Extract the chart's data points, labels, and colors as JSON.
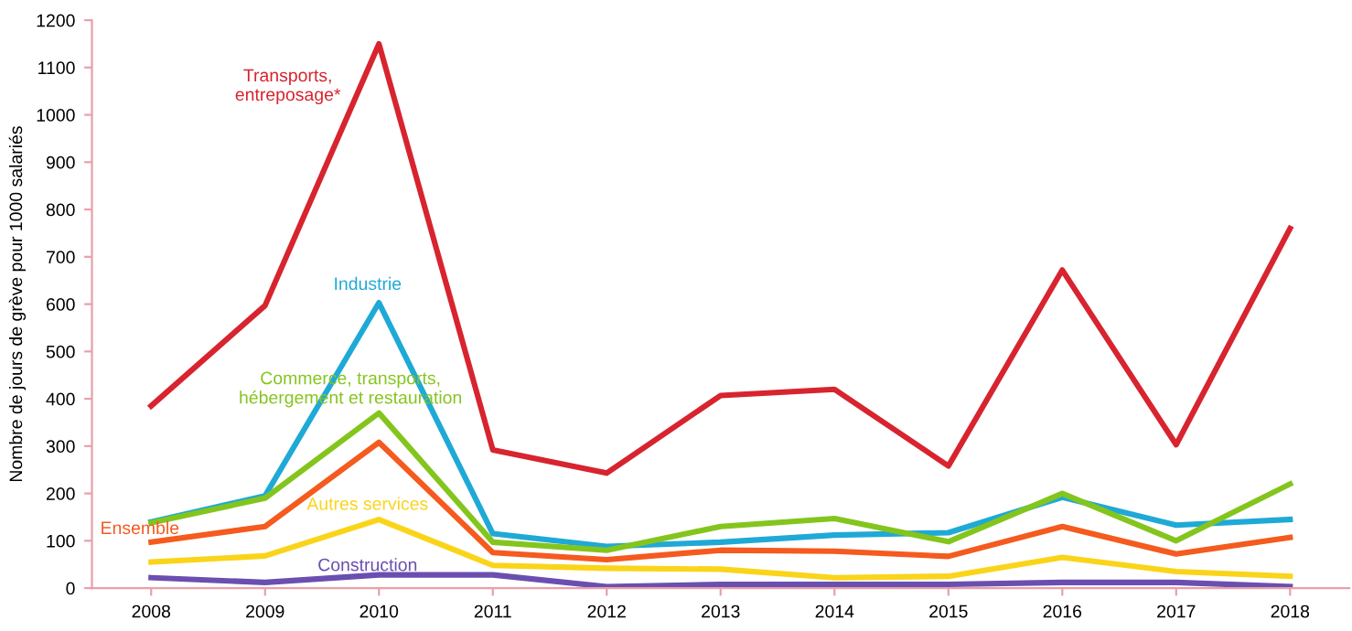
{
  "chart_data": {
    "type": "line",
    "ylabel": "Nombre de jours de grève pour 1000 salariés",
    "categories": [
      "2008",
      "2009",
      "2010",
      "2011",
      "2012",
      "2013",
      "2014",
      "2015",
      "2016",
      "2017",
      "2018"
    ],
    "ylim": [
      0,
      1200
    ],
    "yticks": [
      0,
      100,
      200,
      300,
      400,
      500,
      600,
      700,
      800,
      900,
      1000,
      1100,
      1200
    ],
    "grid": false,
    "legend": false,
    "marker": "none",
    "line_style": "solid",
    "series": [
      {
        "name": "Transports,\nentreposage*",
        "color": "#d7242f",
        "values": [
          385,
          597,
          1150,
          292,
          243,
          407,
          420,
          258,
          672,
          303,
          760
        ]
      },
      {
        "name": "Industrie",
        "color": "#1fa9d6",
        "values": [
          140,
          195,
          603,
          115,
          88,
          97,
          112,
          117,
          192,
          133,
          145
        ]
      },
      {
        "name": "Commerce, transports,\nhébergement et restauration",
        "color": "#84c51d",
        "values": [
          138,
          190,
          370,
          97,
          80,
          130,
          147,
          98,
          200,
          100,
          220
        ]
      },
      {
        "name": "Ensemble",
        "color": "#f55a1e",
        "values": [
          97,
          130,
          308,
          75,
          60,
          80,
          78,
          67,
          130,
          72,
          107
        ]
      },
      {
        "name": "Autres services",
        "color": "#fad419",
        "values": [
          55,
          68,
          145,
          48,
          42,
          40,
          22,
          25,
          65,
          35,
          25
        ]
      },
      {
        "name": "Construction",
        "color": "#6a4fb0",
        "values": [
          22,
          12,
          28,
          28,
          3,
          8,
          8,
          8,
          12,
          12,
          3
        ]
      }
    ]
  }
}
